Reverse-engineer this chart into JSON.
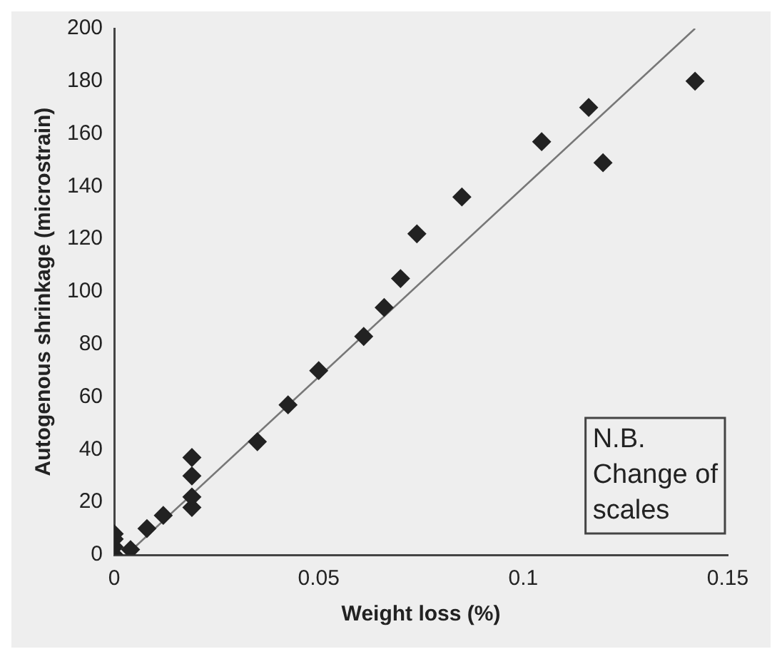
{
  "chart_data": {
    "type": "scatter",
    "xlabel": "Weight loss (%)",
    "ylabel": "Autogenous shrinkage (microstrain)",
    "xlim": [
      0,
      0.15
    ],
    "xticks": [
      0,
      0.05,
      0.1,
      0.15
    ],
    "ylim": [
      0,
      200
    ],
    "yticks": [
      0,
      20,
      40,
      60,
      80,
      100,
      120,
      140,
      160,
      180,
      200
    ],
    "grid": false,
    "legend": false,
    "annotations": [
      "N.B. Change of scales"
    ],
    "series": [
      {
        "type": "scatter",
        "marker": "diamond",
        "color": "#222222",
        "x": [
          0,
          0,
          0,
          0,
          0.004,
          0.008,
          0.012,
          0.019,
          0.019,
          0.019,
          0.019,
          0.035,
          0.0425,
          0.05,
          0.061,
          0.066,
          0.07,
          0.074,
          0.085,
          0.1045,
          0.116,
          0.1195,
          0.142
        ],
        "values": [
          0,
          3,
          6,
          8,
          2,
          10,
          15,
          18,
          22,
          30,
          37,
          43,
          57,
          70,
          83,
          94,
          105,
          122,
          136,
          157,
          170,
          149,
          180
        ]
      },
      {
        "type": "line",
        "marker": "none",
        "color": "#777777",
        "x": [
          0.003,
          0.142
        ],
        "values": [
          0,
          200
        ]
      }
    ]
  }
}
